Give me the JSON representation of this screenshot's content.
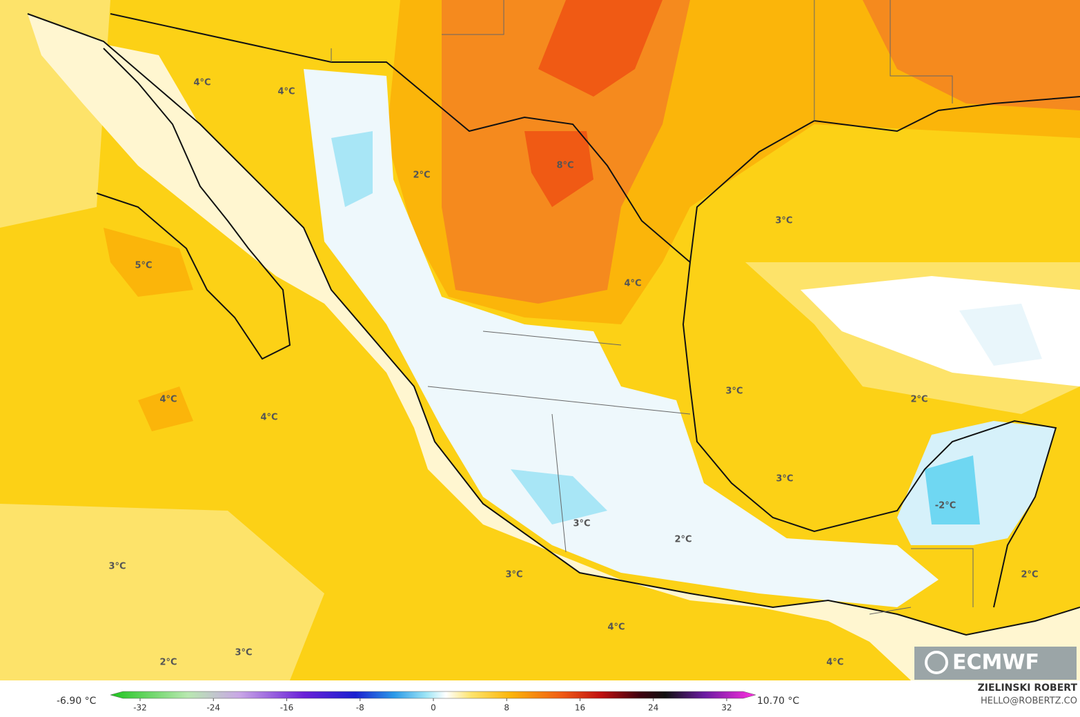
{
  "map": {
    "labels": [
      "4°C",
      "4°C",
      "2°C",
      "8°C",
      "3°C",
      "5°C",
      "4°C",
      "3°C",
      "2°C",
      "4°C",
      "4°C",
      "3°C",
      "-2°C",
      "3°C",
      "2°C",
      "3°C",
      "3°C",
      "2°C",
      "4°C",
      "2°C",
      "3°C",
      "4°C"
    ]
  },
  "colorbar": {
    "min_label": "-6.90 °C",
    "max_label": "10.70 °C",
    "ticks": [
      -32,
      -24,
      -16,
      -8,
      0,
      8,
      16,
      24,
      32
    ]
  },
  "credit": {
    "author": "ZIELINSKI ROBERT",
    "contact": "HELLO@ROBERTZ.CO",
    "logo": "ECMWF"
  }
}
